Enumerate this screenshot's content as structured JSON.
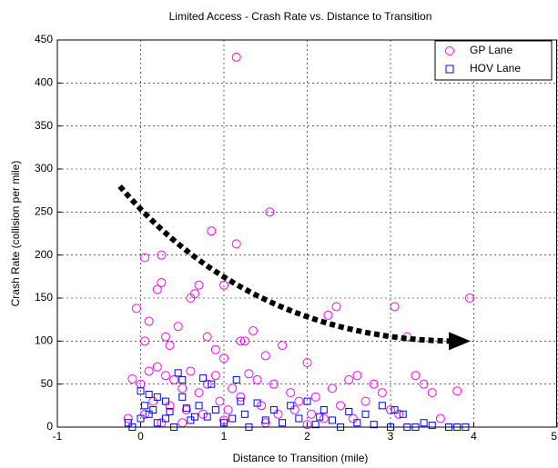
{
  "chart_data": {
    "type": "scatter",
    "title": "Limited Access - Crash Rate vs. Distance to Transition",
    "xlabel": "Distance to Transition (mile)",
    "ylabel": "Crash Rate (collision per mile)",
    "xlim": [
      -1,
      5
    ],
    "xticks": [
      -1,
      0,
      1,
      2,
      3,
      4,
      5
    ],
    "ylim": [
      0,
      450
    ],
    "yticks": [
      0,
      50,
      100,
      150,
      200,
      250,
      300,
      350,
      400,
      450
    ],
    "grid": true,
    "legend": "upper right",
    "series": [
      {
        "name": "GP Lane",
        "color": "#ff00ff",
        "marker": "circle",
        "x": [
          1.15,
          1.55,
          0.85,
          1.15,
          0.05,
          0.25,
          3.95,
          3.05,
          2.35,
          0.25,
          0.2,
          0.6,
          0.7,
          0.65,
          1.0,
          1.35,
          1.25,
          1.2,
          -0.05,
          0.1,
          0.05,
          0.3,
          0.45,
          0.35,
          0.8,
          0.9,
          1.0,
          1.5,
          1.7,
          2.25,
          2.0,
          2.5,
          2.6,
          2.8,
          3.2,
          3.5,
          3.8,
          3.3,
          3.4,
          2.9,
          -0.1,
          0,
          0.1,
          0.2,
          0.3,
          0.4,
          0.5,
          0.6,
          0.7,
          0.8,
          0.9,
          1.1,
          1.2,
          1.3,
          1.4,
          1.6,
          1.8,
          1.9,
          2.1,
          2.3,
          2.4,
          2.7,
          3.0,
          3.1,
          3.6,
          0.15,
          0.35,
          0.55,
          0.75,
          0.95,
          1.05,
          1.45,
          1.65,
          1.85,
          2.05,
          2.2,
          2.55,
          -0.15,
          0.05,
          0.25,
          0.5,
          1.0,
          1.5,
          2.0
        ],
        "values": [
          430,
          250,
          228,
          213,
          197,
          200,
          150,
          140,
          140,
          168,
          160,
          150,
          165,
          155,
          165,
          112,
          100,
          100,
          138,
          123,
          100,
          105,
          117,
          95,
          105,
          90,
          80,
          83,
          95,
          130,
          75,
          55,
          60,
          50,
          105,
          40,
          42,
          60,
          50,
          40,
          56,
          50,
          65,
          70,
          60,
          55,
          45,
          65,
          40,
          50,
          60,
          45,
          35,
          62,
          55,
          50,
          40,
          30,
          35,
          45,
          25,
          30,
          20,
          15,
          10,
          30,
          25,
          20,
          15,
          30,
          20,
          25,
          15,
          20,
          15,
          10,
          10,
          10,
          15,
          5,
          5,
          8,
          5,
          3
        ]
      },
      {
        "name": "HOV Lane",
        "color": "#0000ff",
        "marker": "square",
        "x": [
          0.45,
          0.5,
          0.75,
          0.85,
          1.15,
          0,
          0.1,
          0.2,
          0.3,
          0.5,
          0.7,
          0.9,
          1.2,
          1.4,
          1.6,
          1.8,
          2.0,
          2.2,
          2.5,
          2.7,
          2.9,
          3.05,
          3.15,
          3.3,
          3.5,
          3.4,
          3.8,
          3.9,
          3.7,
          -0.15,
          -0.1,
          0,
          0.1,
          0.2,
          0.3,
          0.4,
          0.6,
          0.8,
          1.0,
          1.1,
          1.3,
          1.5,
          1.7,
          1.9,
          2.1,
          2.3,
          2.4,
          2.6,
          2.8,
          3.0,
          3.2,
          0.05,
          0.15,
          0.35,
          0.55,
          0.65,
          1.25,
          2.15
        ],
        "values": [
          63,
          55,
          57,
          50,
          55,
          42,
          38,
          35,
          30,
          35,
          25,
          20,
          30,
          28,
          20,
          25,
          30,
          20,
          18,
          15,
          25,
          20,
          15,
          0,
          2,
          5,
          0,
          0,
          0,
          5,
          0,
          10,
          15,
          5,
          10,
          0,
          8,
          12,
          5,
          10,
          0,
          8,
          5,
          10,
          3,
          8,
          0,
          5,
          3,
          0,
          0,
          25,
          20,
          18,
          22,
          12,
          15,
          12
        ]
      }
    ]
  }
}
